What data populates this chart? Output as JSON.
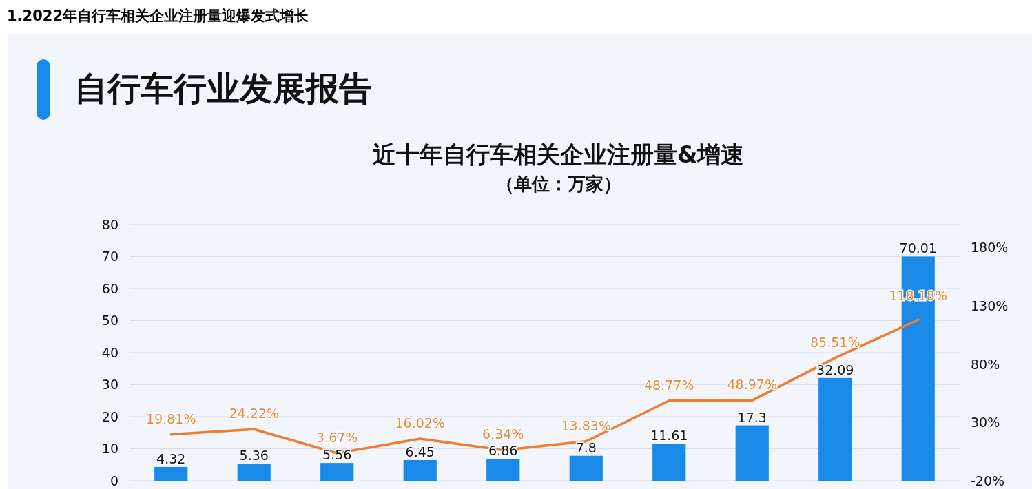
{
  "chart_data": {
    "type": "bar",
    "title": "近十年自行车相关企业注册量&增速",
    "subtitle": "（单位：万家）",
    "annotations": [
      "1.2022年自行车相关企业注册量迎爆发式增长",
      "自行车行业发展报告"
    ],
    "categories": [
      null,
      null,
      null,
      null,
      null,
      null,
      null,
      null,
      null,
      null
    ],
    "series": [
      {
        "color": "#1a8ae8",
        "values": [
          4.32,
          5.36,
          5.56,
          6.45,
          6.86,
          7.8,
          11.61,
          17.3,
          32.09,
          70.01
        ],
        "value_labels": [
          "4.32",
          "5.36",
          "5.56",
          "6.45",
          "6.86",
          "7.8",
          "11.61",
          "17.3",
          "32.09",
          "70.01"
        ]
      },
      {
        "type": "line",
        "axis": "y2",
        "color": "#ed7d31",
        "values": [
          19.81,
          24.22,
          3.67,
          16.02,
          6.34,
          13.83,
          48.77,
          48.97,
          85.51,
          118.18
        ],
        "value_labels": [
          "19.81%",
          "24.22%",
          "3.67%",
          "16.02%",
          "6.34%",
          "13.83%",
          "48.77%",
          "48.97%",
          "85.51%",
          "118.18%"
        ]
      }
    ],
    "ylim": [
      0,
      80
    ],
    "yticks": [
      0,
      10,
      20,
      30,
      40,
      50,
      60,
      70,
      80
    ],
    "y2lim": [
      -20,
      200
    ],
    "y2ticks": [
      {
        "value": -20,
        "label": "-20%"
      },
      {
        "value": 30,
        "label": "30%"
      },
      {
        "value": 80,
        "label": "80%"
      },
      {
        "value": 130,
        "label": "130%"
      },
      {
        "value": 180,
        "label": "180%"
      }
    ],
    "grid": "y",
    "marker": "none",
    "line_style": "solid"
  }
}
